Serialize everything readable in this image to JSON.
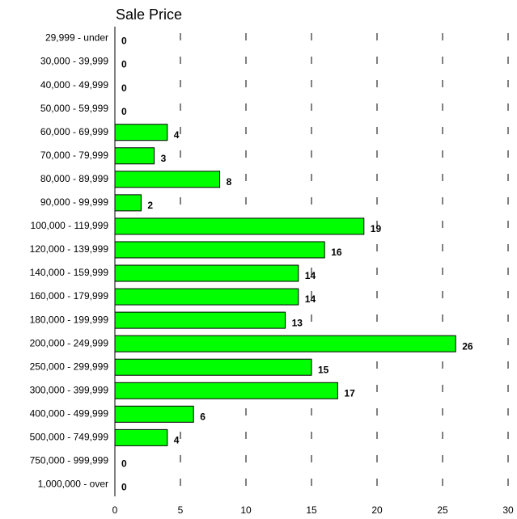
{
  "chart_data": {
    "type": "bar",
    "orientation": "horizontal",
    "title": "Sale Price",
    "categories": [
      "29,999 - under",
      "30,000 - 39,999",
      "40,000 - 49,999",
      "50,000 - 59,999",
      "60,000 - 69,999",
      "70,000 - 79,999",
      "80,000 - 89,999",
      "90,000 - 99,999",
      "100,000 - 119,999",
      "120,000 - 139,999",
      "140,000 - 159,999",
      "160,000 - 179,999",
      "180,000 - 199,999",
      "200,000 - 249,999",
      "250,000 - 299,999",
      "300,000 - 399,999",
      "400,000 - 499,999",
      "500,000 - 749,999",
      "750,000 - 999,999",
      "1,000,000 - over"
    ],
    "values": [
      0,
      0,
      0,
      0,
      4,
      3,
      8,
      2,
      19,
      16,
      14,
      14,
      13,
      26,
      15,
      17,
      6,
      4,
      0,
      0
    ],
    "color": "#00ff00",
    "xlim": [
      0,
      30
    ],
    "xticks": [
      0,
      5,
      10,
      15,
      20,
      25,
      30
    ],
    "grid": true
  }
}
